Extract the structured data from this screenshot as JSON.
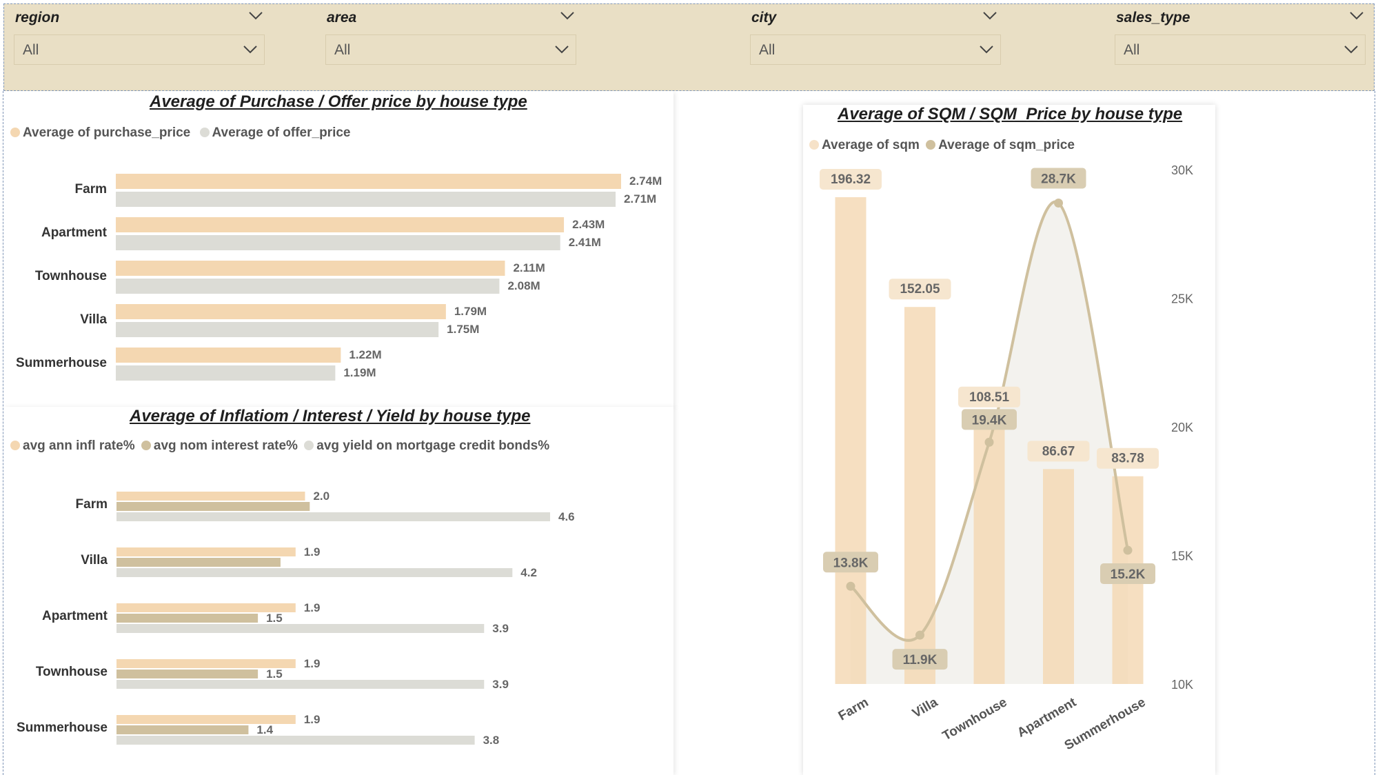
{
  "filters": [
    {
      "label": "region",
      "value": "All"
    },
    {
      "label": "area",
      "value": "All"
    },
    {
      "label": "city",
      "value": "All"
    },
    {
      "label": "sales_type",
      "value": "All"
    }
  ],
  "colors": {
    "filter_bg": "#e9dfc5",
    "peach": "#f4d7b1",
    "light_gray": "#dcdcd6",
    "tan": "#cfc09e",
    "label_bg_peach": "#f6e6cf",
    "label_bg_tan": "#d9cdb2"
  },
  "chart_data": [
    {
      "type": "bar",
      "orientation": "horizontal",
      "title": "Average of Purchase / Offer price by house type",
      "categories": [
        "Farm",
        "Apartment",
        "Townhouse",
        "Villa",
        "Summerhouse"
      ],
      "series": [
        {
          "name": "Average of purchase_price",
          "values": [
            2.74,
            2.43,
            2.11,
            1.79,
            1.22
          ],
          "labels": [
            "2.74M",
            "2.43M",
            "2.11M",
            "1.79M",
            "1.22M"
          ],
          "color": "#f4d7b1"
        },
        {
          "name": "Average of offer_price",
          "values": [
            2.71,
            2.41,
            2.08,
            1.75,
            1.19
          ],
          "labels": [
            "2.71M",
            "2.41M",
            "2.08M",
            "1.75M",
            "1.19M"
          ],
          "color": "#dcdcd6"
        }
      ],
      "unit": "M",
      "xlim": [
        0,
        2.74
      ],
      "legend": "top-left",
      "grid": false
    },
    {
      "type": "bar",
      "orientation": "horizontal",
      "title": "Average of Inflatiom / Interest / Yield by house type",
      "categories": [
        "Farm",
        "Villa",
        "Apartment",
        "Townhouse",
        "Summerhouse"
      ],
      "series": [
        {
          "name": "avg ann infl rate%",
          "values": [
            2.0,
            1.9,
            1.9,
            1.9,
            1.9
          ],
          "labels": [
            "2.0",
            "1.9",
            "1.9",
            "1.9",
            "1.9"
          ],
          "color": "#f4d7b1"
        },
        {
          "name": "avg nom interest rate%",
          "values": [
            2.05,
            1.74,
            1.5,
            1.5,
            1.4
          ],
          "labels": [
            "",
            "",
            "1.5",
            "1.5",
            "1.4"
          ],
          "color": "#cfc09e"
        },
        {
          "name": "avg yield on mortgage credit bonds%",
          "values": [
            4.6,
            4.2,
            3.9,
            3.9,
            3.8
          ],
          "labels": [
            "4.6",
            "4.2",
            "3.9",
            "3.9",
            "3.8"
          ],
          "color": "#dcdcd6"
        }
      ],
      "xlim": [
        0,
        4.6
      ],
      "legend": "top-left",
      "grid": false
    },
    {
      "type": "bar",
      "combo": "column + smooth line (secondary axis)",
      "title": "Average of SQM / SQM_Price by house type",
      "categories": [
        "Farm",
        "Villa",
        "Townhouse",
        "Apartment",
        "Summerhouse"
      ],
      "series": [
        {
          "name": "Average of sqm",
          "type": "bar",
          "values": [
            196.32,
            152.05,
            108.51,
            86.67,
            83.78
          ],
          "labels": [
            "196.32",
            "152.05",
            "108.51",
            "86.67",
            "83.78"
          ],
          "color": "#f4d7b1"
        },
        {
          "name": "Average of sqm_price",
          "type": "line",
          "values": [
            13800,
            11900,
            19400,
            28700,
            15200
          ],
          "labels": [
            "13.8K",
            "11.9K",
            "19.4K",
            "28.7K",
            "15.2K"
          ],
          "color": "#cfc09e"
        }
      ],
      "y2_ticks": [
        "30K",
        "25K",
        "20K",
        "15K",
        "10K"
      ],
      "y2lim": [
        10000,
        30000
      ],
      "ylim": [
        0,
        196.32
      ],
      "legend": "top-left",
      "grid": false
    }
  ]
}
